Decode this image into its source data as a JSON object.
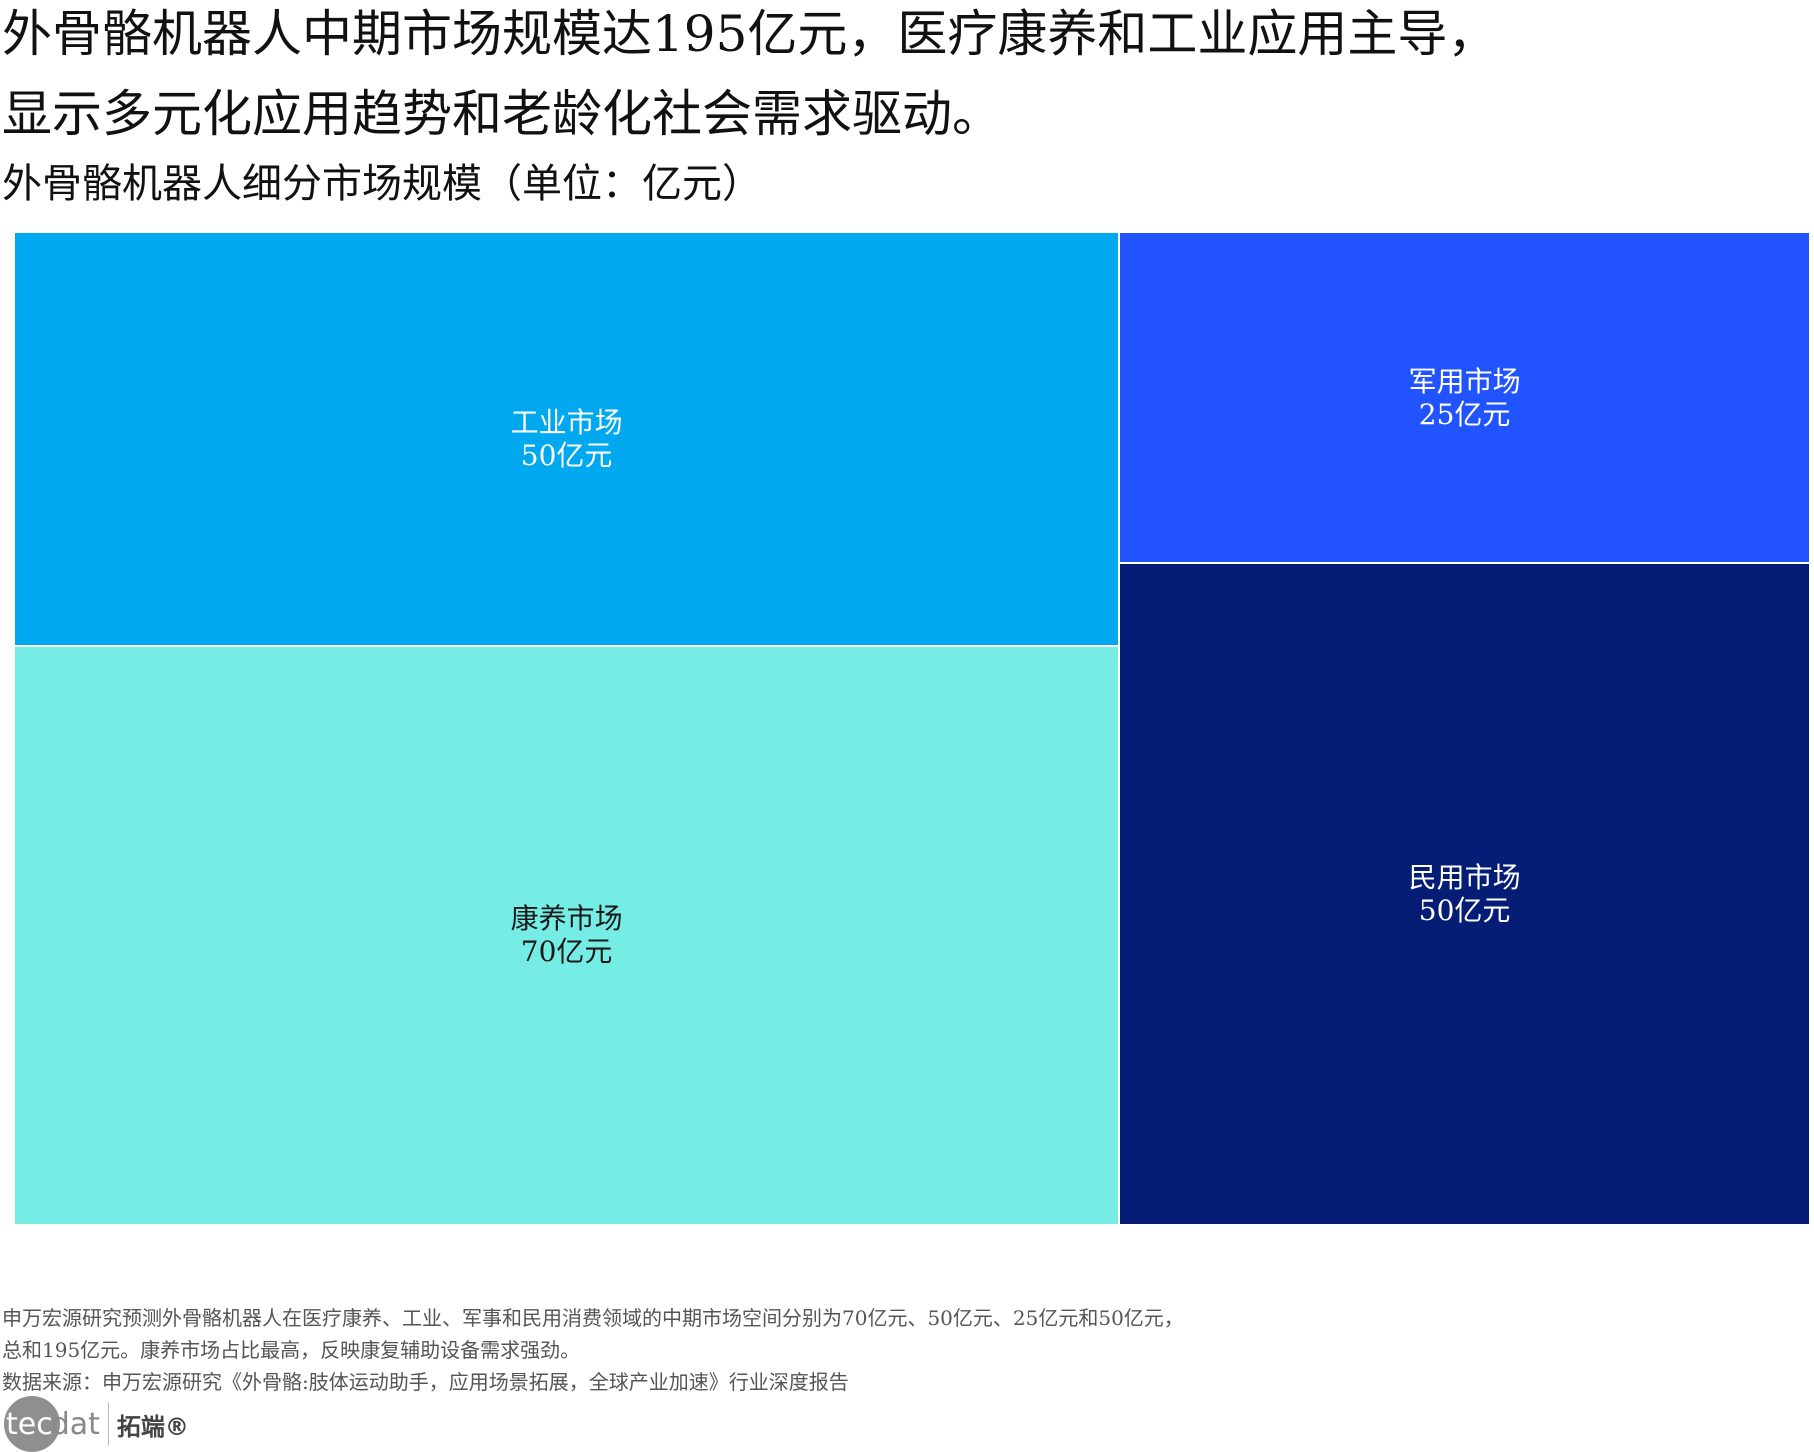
{
  "header": {
    "title_line1": "外骨骼机器人中期市场规模达195亿元，医疗康养和工业应用主导，",
    "title_line2": "显示多元化应用趋势和老龄化社会需求驱动。",
    "subtitle": "外骨骼机器人细分市场规模（单位：亿元）"
  },
  "chart_data": {
    "type": "treemap",
    "title": "外骨骼机器人细分市场规模（单位：亿元）",
    "unit": "亿元",
    "items": [
      {
        "name": "工业市场",
        "value": 50,
        "label": "50亿元",
        "color": "#00A8F0",
        "text_color": "#ffffff",
        "group": 0
      },
      {
        "name": "康养市场",
        "value": 70,
        "label": "70亿元",
        "color": "#75EDE4",
        "text_color": "#1a1a1a",
        "group": 0
      },
      {
        "name": "军用市场",
        "value": 25,
        "label": "25亿元",
        "color": "#2154FF",
        "text_color": "#ffffff",
        "group": 1
      },
      {
        "name": "民用市场",
        "value": 50,
        "label": "50亿元",
        "color": "#051D75",
        "text_color": "#ffffff",
        "group": 1
      }
    ]
  },
  "footer": {
    "note_line1": "申万宏源研究预测外骨骼机器人在医疗康养、工业、军事和民用消费领域的中期市场空间分别为70亿元、50亿元、25亿元和50亿元，",
    "note_line2": "总和195亿元。康养市场占比最高，反映康复辅助设备需求强劲。",
    "source": "数据来源：申万宏源研究《外骨骼:肢体运动助手，应用场景拓展，全球产业加速》行业深度报告"
  },
  "logo": {
    "text_left": "tec",
    "text_right": "dat",
    "brand_cn": "拓端®"
  }
}
